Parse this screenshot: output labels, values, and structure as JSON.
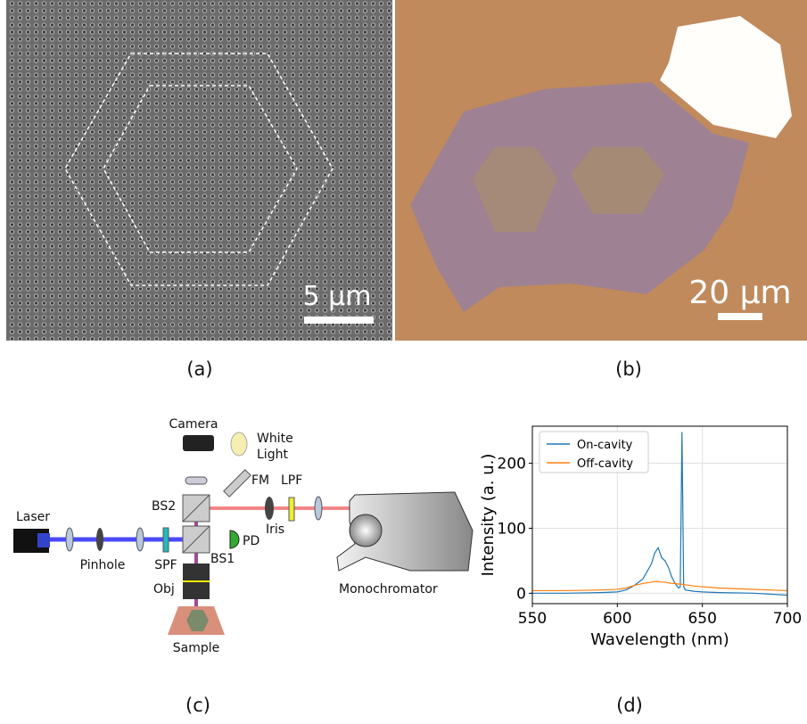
{
  "panels": {
    "a": {
      "label": "(a)",
      "scale_bar": "5 µm"
    },
    "b": {
      "label": "(b)",
      "scale_bar": "20 µm"
    },
    "c": {
      "label": "(c)",
      "components": {
        "laser": "Laser",
        "pinhole": "Pinhole",
        "spf": "SPF",
        "bs2": "BS2",
        "bs1": "BS1",
        "obj": "Obj",
        "sample": "Sample",
        "camera": "Camera",
        "white_light": [
          "White",
          "Light"
        ],
        "fm": "FM",
        "lpf": "LPF",
        "iris": "Iris",
        "pd": "PD",
        "monochromator": "Monochromator"
      }
    },
    "d": {
      "label": "(d)"
    }
  },
  "chart_data": {
    "type": "line",
    "xlabel": "Wavelength (nm)",
    "ylabel": "Intensity (a. u.)",
    "x": [
      550,
      570,
      590,
      600,
      605,
      610,
      615,
      620,
      622,
      624,
      626,
      628,
      630,
      632,
      634,
      636,
      637,
      638,
      639,
      640,
      645,
      650,
      660,
      680,
      700
    ],
    "series": [
      {
        "name": "On-cavity",
        "color": "#1f77b4",
        "values": [
          0,
          0,
          1,
          2,
          5,
          12,
          22,
          45,
          62,
          70,
          55,
          50,
          40,
          25,
          15,
          8,
          10,
          248,
          10,
          5,
          3,
          2,
          1,
          0,
          -3
        ]
      },
      {
        "name": "Off-cavity",
        "color": "#ff7f0e",
        "values": [
          4,
          4,
          5,
          6,
          8,
          12,
          15,
          17,
          18,
          18,
          17,
          17,
          16,
          15,
          15,
          14,
          14,
          14,
          13,
          13,
          11,
          10,
          8,
          6,
          4
        ]
      }
    ],
    "xlim": [
      550,
      700
    ],
    "xticks": [
      550,
      600,
      650,
      700
    ],
    "ylim": [
      -16,
      257
    ],
    "yticks": [
      0,
      100,
      200
    ],
    "grid": true,
    "legend": "upper left"
  }
}
